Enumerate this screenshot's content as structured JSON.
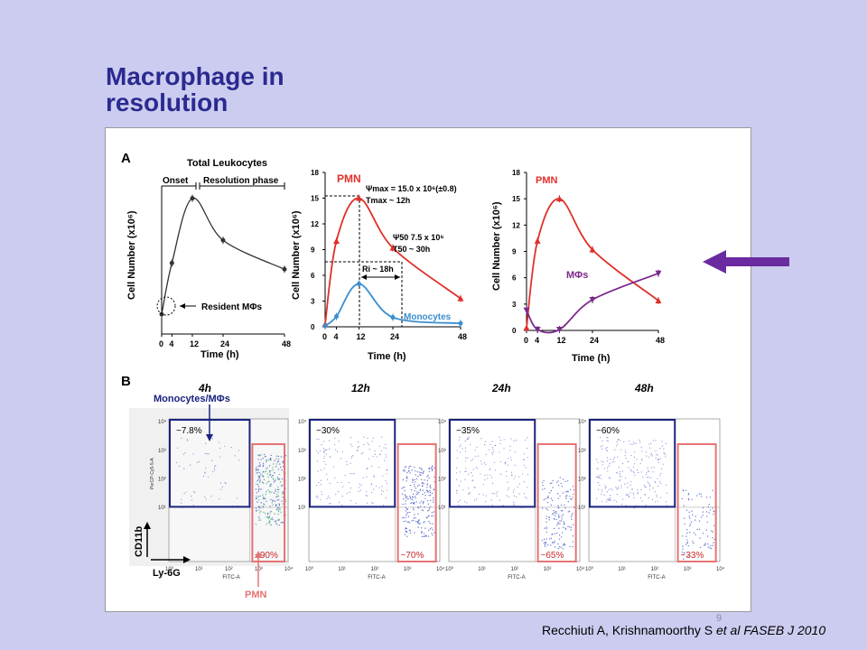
{
  "slide": {
    "title_line1": "Macrophage in",
    "title_line2": "resolution",
    "slide_number": "9",
    "citation_pre": "Recchiuti A, Krishnamoorthy S ",
    "citation_em": "et al FASEB J 2010",
    "accent_color": "#6a2aa0"
  },
  "figure": {
    "panel_a_label": "A",
    "panel_b_label": "B",
    "time_label": "Time (h)",
    "cell_number_label": "Cell Number (x10⁶)",
    "total_leukocytes": "Total Leukocytes",
    "onset": "Onset",
    "resolution_phase": "Resolution phase",
    "resident_mphis": "Resident MΦs",
    "pmn": "PMN",
    "monocytes": "Monocytes",
    "mphis": "MΦs",
    "psi_max": "Ψmax = 15.0 x 10⁶(±0.8)",
    "t_max": "Tmax ~ 12h",
    "psi_50": "Ψ50 7.5 x 10⁶",
    "t_50": "T50 ~ 30h",
    "ri": "Ri ~ 18h",
    "flow_times": [
      "4h",
      "12h",
      "24h",
      "48h"
    ],
    "monocytes_mphis": "Monocytes/MΦs",
    "cd11b": "CD11b",
    "ly6g": "Ly-6G",
    "fitc": "FITC-A",
    "percp": "PerCP-Cy5-5-A",
    "pmn_bottom": "PMN",
    "mono_pcts": [
      "~7.8%",
      "~30%",
      "~35%",
      "~60%"
    ],
    "pmn_pcts": [
      "~90%",
      "~70%",
      "~65%",
      "~33%"
    ],
    "x_ticks": [
      "0",
      "4",
      "12",
      "24",
      "48"
    ],
    "y_ticks": [
      "0",
      "3",
      "6",
      "9",
      "12",
      "15",
      "18"
    ],
    "flow_ticks_x": [
      "10⁰",
      "10¹",
      "10²",
      "10³",
      "10⁴"
    ],
    "flow_ticks_y": [
      "10¹",
      "10²",
      "10³",
      "10⁴"
    ]
  },
  "chart_data": [
    {
      "type": "line",
      "title": "Total Leukocytes",
      "xlabel": "Time (h)",
      "ylabel": "Cell Number (x10⁶)",
      "x": [
        0,
        4,
        12,
        24,
        48
      ],
      "series": [
        {
          "name": "Total Leukocytes",
          "values": [
            3.2,
            11.5,
            22.0,
            15.2,
            10.5
          ]
        }
      ]
    },
    {
      "type": "line",
      "xlabel": "Time (h)",
      "ylabel": "Cell Number (x10⁶)",
      "x": [
        0,
        4,
        12,
        24,
        48
      ],
      "ylim": [
        0,
        18
      ],
      "series": [
        {
          "name": "PMN",
          "values": [
            0.3,
            10.0,
            15.0,
            9.2,
            3.3
          ]
        },
        {
          "name": "Monocytes",
          "values": [
            0.1,
            1.2,
            5.0,
            1.1,
            0.4
          ]
        }
      ]
    },
    {
      "type": "line",
      "xlabel": "Time (h)",
      "ylabel": "Cell Number (x10⁶)",
      "x": [
        0,
        4,
        12,
        24,
        48
      ],
      "ylim": [
        0,
        18
      ],
      "series": [
        {
          "name": "PMN",
          "values": [
            0.3,
            10.2,
            15.0,
            9.2,
            3.4
          ]
        },
        {
          "name": "MΦs",
          "values": [
            2.3,
            0.1,
            0.1,
            3.5,
            6.5
          ]
        }
      ]
    }
  ]
}
